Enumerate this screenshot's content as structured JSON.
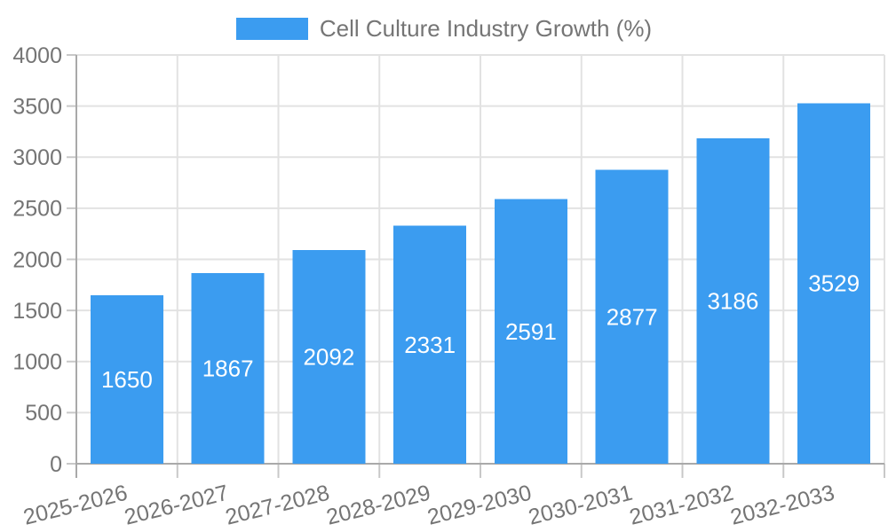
{
  "chart_data": {
    "type": "bar",
    "title": "Cell Culture Industry Growth (%)",
    "legend": {
      "label": "Cell Culture Industry Growth (%)",
      "position": "top-center"
    },
    "categories": [
      "2025-2026",
      "2026-2027",
      "2027-2028",
      "2028-2029",
      "2029-2030",
      "2030-2031",
      "2031-2032",
      "2032-2033"
    ],
    "values": [
      1650,
      1867,
      2092,
      2331,
      2591,
      2877,
      3186,
      3529
    ],
    "xlabel": "",
    "ylabel": "",
    "ylim": [
      0,
      4000
    ],
    "yticks": [
      0,
      500,
      1000,
      1500,
      2000,
      2500,
      3000,
      3500,
      4000
    ],
    "grid": "horizontal and vertical light gridlines",
    "value_labels": "white, centered inside each bar",
    "x_tick_rotation_deg": -14
  },
  "colors": {
    "bar": "#3B9CF0",
    "grid": "#e2e2e2",
    "axis": "#a9a9a9",
    "tick": "#c8c8c8",
    "label_text": "#757575",
    "value_text": "#ffffff",
    "background": "#ffffff"
  }
}
